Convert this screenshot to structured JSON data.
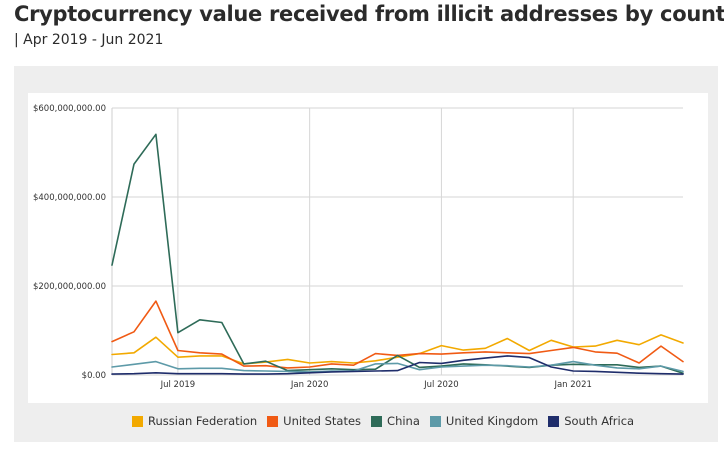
{
  "title": "Cryptocurrency value received from illicit addresses by country",
  "subtitle": "| Apr 2019 - Jun 2021",
  "chart_data": {
    "type": "line",
    "title": "Cryptocurrency value received from illicit addresses by country",
    "subtitle": "| Apr 2019 - Jun 2021",
    "xlabel": "",
    "ylabel": "",
    "x": [
      "2019-04",
      "2019-05",
      "2019-06",
      "2019-07",
      "2019-08",
      "2019-09",
      "2019-10",
      "2019-11",
      "2019-12",
      "2020-01",
      "2020-02",
      "2020-03",
      "2020-04",
      "2020-05",
      "2020-06",
      "2020-07",
      "2020-08",
      "2020-09",
      "2020-10",
      "2020-11",
      "2020-12",
      "2021-01",
      "2021-02",
      "2021-03",
      "2021-04",
      "2021-05",
      "2021-06"
    ],
    "x_ticks": [
      {
        "label": "Jul 2019",
        "index": 3
      },
      {
        "label": "Jan 2020",
        "index": 9
      },
      {
        "label": "Jul 2020",
        "index": 15
      },
      {
        "label": "Jan 2021",
        "index": 21
      }
    ],
    "y_ticks": [
      {
        "label": "$600,000,000.00",
        "value": 600000000
      },
      {
        "label": "$400,000,000.00",
        "value": 400000000
      },
      {
        "label": "$200,000,000.00",
        "value": 200000000
      },
      {
        "label": "$0.00",
        "value": 0
      }
    ],
    "ylim": [
      0,
      600000000
    ],
    "grid": true,
    "legend_position": "bottom",
    "series": [
      {
        "name": "Russian Federation",
        "color": "#f2a900",
        "values": [
          46000000,
          50000000,
          85000000,
          40000000,
          43000000,
          43000000,
          25000000,
          29000000,
          35000000,
          27000000,
          30000000,
          27000000,
          32000000,
          40000000,
          48000000,
          66000000,
          56000000,
          60000000,
          82000000,
          55000000,
          78000000,
          63000000,
          65000000,
          78000000,
          68000000,
          90000000,
          72000000
        ]
      },
      {
        "name": "United States",
        "color": "#f05a14",
        "values": [
          75000000,
          97000000,
          166000000,
          55000000,
          50000000,
          47000000,
          20000000,
          21000000,
          16000000,
          18000000,
          25000000,
          22000000,
          48000000,
          44000000,
          48000000,
          47000000,
          50000000,
          52000000,
          50000000,
          48000000,
          55000000,
          62000000,
          52000000,
          49000000,
          27000000,
          65000000,
          30000000
        ]
      },
      {
        "name": "China",
        "color": "#2e6b58",
        "values": [
          247000000,
          474000000,
          541000000,
          95000000,
          124000000,
          118000000,
          25000000,
          31000000,
          10000000,
          12000000,
          14000000,
          12000000,
          13000000,
          44000000,
          17000000,
          20000000,
          25000000,
          23000000,
          20000000,
          17000000,
          22000000,
          24000000,
          23000000,
          23000000,
          17000000,
          20000000,
          4000000
        ]
      },
      {
        "name": "United Kingdom",
        "color": "#5d9aa8",
        "values": [
          18000000,
          24000000,
          30000000,
          14000000,
          15000000,
          15000000,
          10000000,
          9000000,
          8000000,
          7000000,
          9000000,
          9000000,
          25000000,
          26000000,
          12000000,
          18000000,
          20000000,
          22000000,
          21000000,
          18000000,
          22000000,
          30000000,
          22000000,
          16000000,
          14000000,
          20000000,
          8000000
        ]
      },
      {
        "name": "South Africa",
        "color": "#1f2d6b",
        "values": [
          2000000,
          3000000,
          5000000,
          3000000,
          3000000,
          3000000,
          2000000,
          2000000,
          3000000,
          5000000,
          7000000,
          8000000,
          9000000,
          10000000,
          28000000,
          26000000,
          33000000,
          38000000,
          43000000,
          39000000,
          18000000,
          9000000,
          8000000,
          6000000,
          4000000,
          3000000,
          2000000
        ]
      }
    ]
  }
}
